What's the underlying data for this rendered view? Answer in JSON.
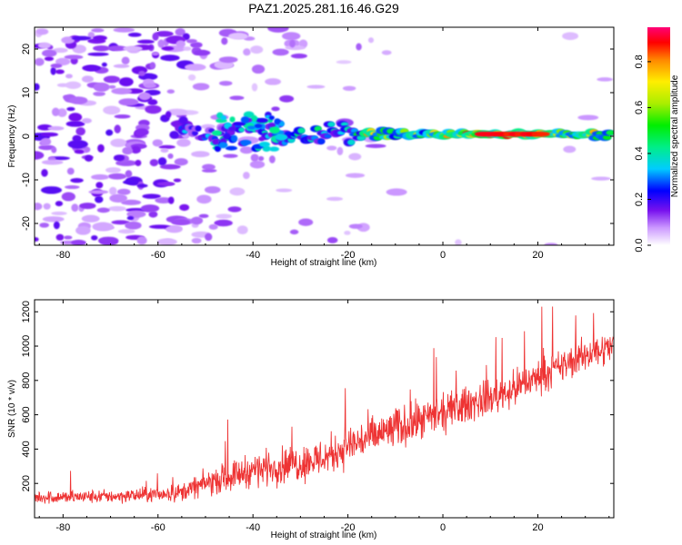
{
  "title": "PAZ1.2025.281.16.46.G29",
  "chart_data": [
    {
      "type": "heatmap",
      "xlabel": "Height of straight line (km)",
      "ylabel": "Frequency (Hz)",
      "xlim": [
        -86,
        36
      ],
      "ylim": [
        -25,
        25
      ],
      "x_ticks": [
        -80,
        -60,
        -40,
        -20,
        0,
        20
      ],
      "y_ticks": [
        -20,
        -10,
        0,
        10,
        20
      ],
      "colorbar": {
        "label": "Normalized spectral amplitude",
        "range": [
          0,
          0.95
        ],
        "ticks": [
          0.0,
          0.2,
          0.4,
          0.6,
          0.8
        ]
      },
      "ridge": {
        "frequency_hz": 0.5,
        "onset_height_km": -53,
        "peak_region_km": [
          8,
          22
        ],
        "peak_amplitude": 0.95
      }
    },
    {
      "type": "line",
      "xlabel": "Height of straight line (km)",
      "ylabel": "SNR (10 * v/v)",
      "xlim": [
        -86,
        36
      ],
      "ylim": [
        0,
        1270
      ],
      "x_ticks": [
        -80,
        -60,
        -40,
        -20,
        0,
        20
      ],
      "y_ticks": [
        200,
        400,
        600,
        800,
        1000,
        1200
      ],
      "series": [
        {
          "name": "SNR",
          "color": "#ee3333",
          "x": [
            -86,
            -80,
            -70,
            -60,
            -55,
            -50,
            -45,
            -40,
            -35,
            -30,
            -25,
            -20,
            -15,
            -10,
            -5,
            0,
            5,
            10,
            15,
            20,
            25,
            30,
            36
          ],
          "mean": [
            120,
            120,
            125,
            135,
            150,
            200,
            240,
            280,
            300,
            320,
            350,
            420,
            470,
            520,
            560,
            600,
            660,
            700,
            750,
            820,
            880,
            950,
            1000
          ],
          "spread": [
            60,
            60,
            60,
            70,
            80,
            110,
            130,
            150,
            160,
            170,
            180,
            190,
            190,
            190,
            180,
            170,
            170,
            160,
            160,
            150,
            150,
            150,
            140
          ]
        }
      ]
    }
  ]
}
